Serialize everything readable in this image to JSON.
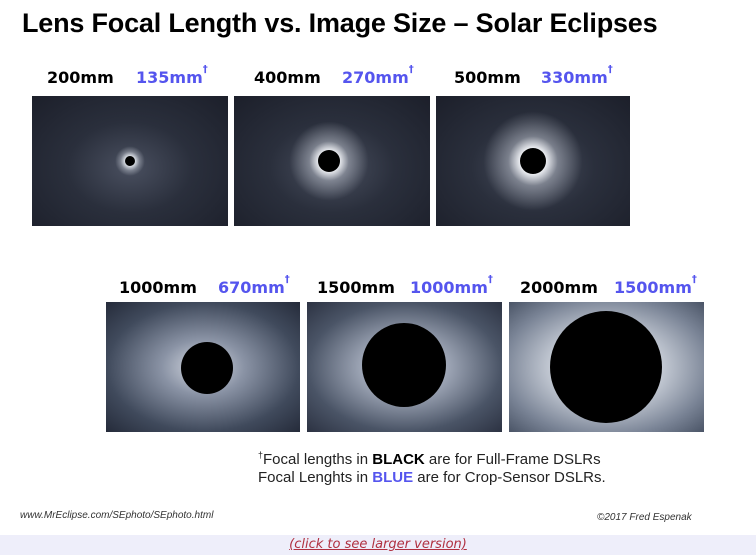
{
  "title": "Lens Focal Length vs. Image Size – Solar Eclipses",
  "panels": [
    {
      "full_frame": "200mm",
      "crop": "135mm",
      "dagger": "†"
    },
    {
      "full_frame": "400mm",
      "crop": "270mm",
      "dagger": "†"
    },
    {
      "full_frame": "500mm",
      "crop": "330mm",
      "dagger": "†"
    },
    {
      "full_frame": "1000mm",
      "crop": "670mm",
      "dagger": "†"
    },
    {
      "full_frame": "1500mm",
      "crop": "1000mm",
      "dagger": "†"
    },
    {
      "full_frame": "2000mm",
      "crop": "1500mm",
      "dagger": "†"
    }
  ],
  "note": {
    "dagger": "†",
    "line1_pre": "Focal lengths in ",
    "line1_bold": "BLACK",
    "line1_post": " are for Full-Frame DSLRs",
    "line2_pre": "Focal Lenghts in ",
    "line2_bold": "BLUE",
    "line2_post": " are for Crop-Sensor DSLRs."
  },
  "url": "www.MrEclipse.com/SEphoto/SEphoto.html",
  "copyright": "©2017 Fred Espenak",
  "link": "(click to see larger version)",
  "colors": {
    "blue": "#5555ee",
    "link": "#b03040",
    "band": "#eeeefa"
  }
}
